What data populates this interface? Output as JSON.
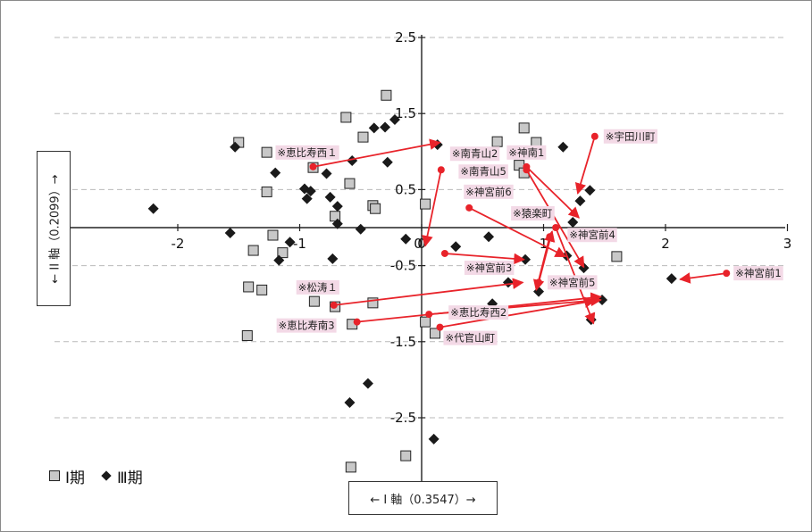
{
  "chart_data": {
    "type": "scatter",
    "xlabel": "← I 軸（0.3547）→",
    "ylabel": "← II 軸（0.2099）→",
    "xlim": [
      -3.3,
      3.0
    ],
    "ylim": [
      -3.3,
      2.6
    ],
    "x_ticks": [
      -2,
      -1,
      0,
      1,
      2,
      3
    ],
    "y_ticks": [
      2.5,
      1.5,
      0.5,
      -0.5,
      -1.5,
      -2.5
    ],
    "grid": "horizontal dashed",
    "legend": {
      "placement": "bottom-left",
      "items": [
        {
          "name": "Ⅰ期",
          "marker": "square"
        },
        {
          "name": "Ⅲ期",
          "marker": "diamond"
        }
      ]
    },
    "series": [
      {
        "name": "Ⅰ期",
        "marker": "square",
        "points": [
          [
            -0.29,
            1.74
          ],
          [
            -0.62,
            1.45
          ],
          [
            -1.5,
            1.12
          ],
          [
            -1.27,
            0.99
          ],
          [
            -0.48,
            1.19
          ],
          [
            -0.89,
            0.79
          ],
          [
            -0.59,
            0.58
          ],
          [
            -1.27,
            0.47
          ],
          [
            -0.71,
            0.15
          ],
          [
            -0.4,
            0.29
          ],
          [
            -0.38,
            0.25
          ],
          [
            -1.22,
            -0.1
          ],
          [
            -1.38,
            -0.3
          ],
          [
            -1.14,
            -0.33
          ],
          [
            -1.42,
            -0.78
          ],
          [
            -1.31,
            -0.82
          ],
          [
            -0.88,
            -0.97
          ],
          [
            -0.71,
            -1.04
          ],
          [
            -0.57,
            -1.27
          ],
          [
            -0.4,
            -0.99
          ],
          [
            -1.43,
            -1.42
          ],
          [
            0.03,
            0.31
          ],
          [
            0.84,
            1.31
          ],
          [
            0.62,
            1.13
          ],
          [
            0.94,
            1.12
          ],
          [
            0.8,
            0.82
          ],
          [
            0.84,
            0.72
          ],
          [
            0.64,
            -0.51
          ],
          [
            1.6,
            -0.38
          ],
          [
            -0.58,
            -3.15
          ],
          [
            -0.13,
            -3.0
          ],
          [
            0.03,
            -1.24
          ],
          [
            0.11,
            -1.39
          ]
        ]
      },
      {
        "name": "Ⅲ期",
        "marker": "diamond",
        "points": [
          [
            -0.22,
            1.42
          ],
          [
            -0.3,
            1.32
          ],
          [
            -0.39,
            1.31
          ],
          [
            -1.53,
            1.06
          ],
          [
            -0.28,
            0.86
          ],
          [
            -1.2,
            0.72
          ],
          [
            -0.78,
            0.71
          ],
          [
            -0.57,
            0.88
          ],
          [
            -0.96,
            0.51
          ],
          [
            -0.91,
            0.48
          ],
          [
            -0.75,
            0.4
          ],
          [
            -0.94,
            0.38
          ],
          [
            -0.69,
            0.28
          ],
          [
            -2.2,
            0.25
          ],
          [
            -0.69,
            0.05
          ],
          [
            -0.5,
            -0.02
          ],
          [
            -1.57,
            -0.07
          ],
          [
            -1.08,
            -0.19
          ],
          [
            -0.13,
            -0.15
          ],
          [
            0.55,
            -0.12
          ],
          [
            0.28,
            -0.25
          ],
          [
            -0.73,
            -0.41
          ],
          [
            -1.17,
            -0.43
          ],
          [
            0.13,
            1.09
          ],
          [
            1.16,
            1.06
          ],
          [
            1.38,
            0.49
          ],
          [
            1.3,
            0.35
          ],
          [
            1.24,
            0.07
          ],
          [
            1.19,
            -0.37
          ],
          [
            1.33,
            -0.53
          ],
          [
            0.96,
            -0.84
          ],
          [
            0.71,
            -0.72
          ],
          [
            1.48,
            -0.95
          ],
          [
            1.39,
            -1.21
          ],
          [
            0.58,
            -1.0
          ],
          [
            0.85,
            -0.42
          ],
          [
            -0.59,
            -2.3
          ],
          [
            -0.44,
            -2.05
          ],
          [
            0.1,
            -2.78
          ],
          [
            2.05,
            -0.67
          ]
        ]
      }
    ],
    "highlighted": [
      {
        "label": "※恵比寿西１",
        "from": [
          -0.89,
          0.8
        ],
        "to": [
          0.15,
          1.12
        ]
      },
      {
        "label": "※南青山2",
        "from": [
          0.16,
          0.76
        ],
        "to": [
          0.03,
          -0.24
        ]
      },
      {
        "label": "※宇田川町",
        "from": [
          1.42,
          1.2
        ],
        "to": [
          1.28,
          0.45
        ]
      },
      {
        "label": "※神南1",
        "from": [
          0.86,
          0.8
        ],
        "to": [
          1.29,
          0.13
        ]
      },
      {
        "label": "※南青山5",
        "from": [
          0.86,
          0.76
        ],
        "to": [
          1.33,
          -0.52
        ]
      },
      {
        "label": "※神宮前6",
        "from": [
          0.39,
          0.26
        ],
        "to": [
          1.18,
          -0.38
        ]
      },
      {
        "label": "※猿楽町",
        "from": [
          1.1,
          0.0
        ],
        "to": [
          1.41,
          -1.26
        ]
      },
      {
        "label": "※神宮前4",
        "from": [
          1.05,
          -0.12
        ],
        "to": [
          0.94,
          -0.82
        ]
      },
      {
        "label": "※神宮前3",
        "from": [
          0.19,
          -0.34
        ],
        "to": [
          0.84,
          -0.42
        ]
      },
      {
        "label": "※神宮前5",
        "from": [
          0.96,
          -0.72
        ],
        "to": [
          1.07,
          -0.05
        ]
      },
      {
        "label": "※神宮前1",
        "from": [
          2.5,
          -0.6
        ],
        "to": [
          2.12,
          -0.68
        ]
      },
      {
        "label": "※松涛１",
        "from": [
          -0.72,
          -1.02
        ],
        "to": [
          0.83,
          -0.72
        ]
      },
      {
        "label": "※恵比寿南3",
        "from": [
          -0.53,
          -1.24
        ],
        "to": [
          1.47,
          -0.91
        ]
      },
      {
        "label": "※恵比寿西2",
        "from": [
          0.06,
          -1.14
        ],
        "to": [
          1.47,
          -0.95
        ]
      },
      {
        "label": "※代官山町",
        "from": [
          0.15,
          -1.31
        ],
        "to": [
          1.42,
          -0.96
        ]
      }
    ]
  }
}
